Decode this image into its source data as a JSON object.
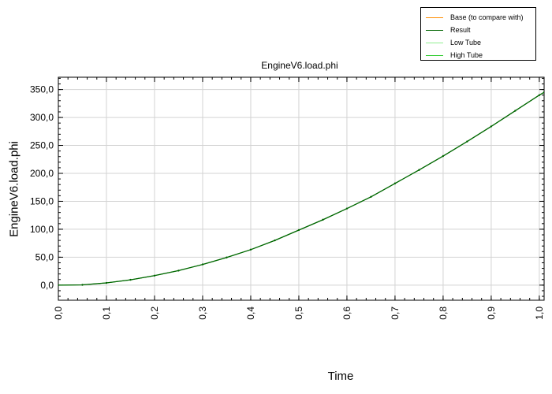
{
  "chart_data": {
    "type": "line",
    "title": "EngineV6.load.phi",
    "xlabel": "Time",
    "ylabel": "EngineV6.load.phi",
    "xlim": [
      0.0,
      1.01
    ],
    "ylim": [
      -27,
      372
    ],
    "x_ticks": [
      "0,0",
      "0,1",
      "0,2",
      "0,3",
      "0,4",
      "0,5",
      "0,6",
      "0,7",
      "0,8",
      "0,9",
      "1,0"
    ],
    "x_tick_values": [
      0.0,
      0.1,
      0.2,
      0.3,
      0.4,
      0.5,
      0.6,
      0.7,
      0.8,
      0.9,
      1.0
    ],
    "y_ticks": [
      "0,0",
      "50,0",
      "100,0",
      "150,0",
      "200,0",
      "250,0",
      "300,0",
      "350,0"
    ],
    "y_tick_values": [
      0,
      50,
      100,
      150,
      200,
      250,
      300,
      350
    ],
    "grid": true,
    "legend_position": "top-right",
    "series": [
      {
        "name": "Base (to compare with)",
        "color": "#ff8c00",
        "x": [],
        "y": []
      },
      {
        "name": "Result",
        "color": "#006400",
        "x": [
          0.0,
          0.05,
          0.1,
          0.15,
          0.2,
          0.25,
          0.3,
          0.35,
          0.4,
          0.45,
          0.5,
          0.55,
          0.6,
          0.65,
          0.7,
          0.75,
          0.8,
          0.85,
          0.9,
          0.95,
          1.0,
          1.01
        ],
        "y": [
          0.0,
          0.5,
          4.0,
          9.5,
          17.0,
          26.0,
          37.0,
          49.5,
          63.5,
          80.0,
          98.5,
          117.0,
          137.0,
          158.0,
          182.0,
          206.0,
          231.0,
          257.0,
          284.0,
          312.0,
          340.0,
          345.0
        ]
      },
      {
        "name": "Low Tube",
        "color": "#90ee90",
        "x": [
          0.0,
          0.05,
          0.1,
          0.15,
          0.2,
          0.25,
          0.3,
          0.35,
          0.4,
          0.45,
          0.5,
          0.55,
          0.6,
          0.65,
          0.7,
          0.75,
          0.8,
          0.85,
          0.9,
          0.95,
          1.0,
          1.01
        ],
        "y": [
          0.0,
          0.5,
          4.0,
          9.5,
          17.0,
          26.0,
          37.0,
          49.5,
          63.5,
          80.0,
          98.5,
          117.0,
          137.0,
          158.0,
          182.0,
          206.0,
          231.0,
          257.0,
          284.0,
          312.0,
          340.0,
          345.0
        ]
      },
      {
        "name": "High Tube",
        "color": "#32cd32",
        "x": [
          0.0,
          0.05,
          0.1,
          0.15,
          0.2,
          0.25,
          0.3,
          0.35,
          0.4,
          0.45,
          0.5,
          0.55,
          0.6,
          0.65,
          0.7,
          0.75,
          0.8,
          0.85,
          0.9,
          0.95,
          1.0,
          1.01
        ],
        "y": [
          0.0,
          0.5,
          4.0,
          9.5,
          17.0,
          26.0,
          37.0,
          49.5,
          63.5,
          80.0,
          98.5,
          117.0,
          137.0,
          158.0,
          182.0,
          206.0,
          231.0,
          257.0,
          284.0,
          312.0,
          340.0,
          345.0
        ]
      }
    ]
  }
}
